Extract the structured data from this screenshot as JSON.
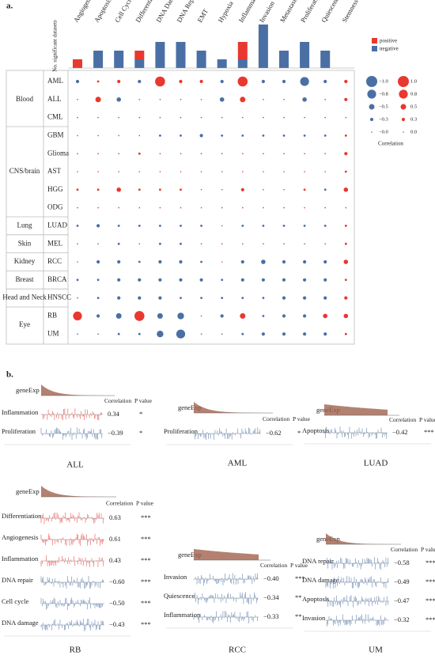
{
  "panel_a": {
    "label": "a.",
    "states": [
      "Angiogenesis",
      "Apoptosis",
      "Cell Cycle",
      "Differentiation",
      "DNA Damage",
      "DNA Repair",
      "EMT",
      "Hypoxia",
      "Inflammation",
      "Invasion",
      "Metastasis",
      "Proliferation",
      "Quiescence",
      "Stemness"
    ],
    "bar_chart": {
      "type": "bar",
      "y_label": "No. significant datasets",
      "ylim": [
        0,
        5
      ],
      "series": [
        {
          "name": "negative",
          "color": "#4a6fa5",
          "values": [
            0,
            2,
            2,
            1,
            3,
            3,
            2,
            1,
            1,
            5,
            2,
            3,
            2,
            0
          ]
        },
        {
          "name": "positive",
          "color": "#e8382f",
          "values": [
            1,
            0,
            0,
            1,
            0,
            0,
            0,
            0,
            2,
            0,
            0,
            0,
            0,
            0
          ]
        }
      ]
    },
    "matrix": {
      "type": "bubble",
      "groups": [
        {
          "name": "Blood",
          "rows": [
            0,
            1,
            2
          ]
        },
        {
          "name": "CNS/brain",
          "rows": [
            3,
            4,
            5,
            6,
            7
          ]
        },
        {
          "name": "Lung",
          "rows": [
            8
          ]
        },
        {
          "name": "Skin",
          "rows": [
            9
          ]
        },
        {
          "name": "Kidney",
          "rows": [
            10
          ]
        },
        {
          "name": "Breast",
          "rows": [
            11
          ]
        },
        {
          "name": "Head and Neck",
          "rows": [
            12
          ]
        },
        {
          "name": "Eye",
          "rows": [
            13,
            14
          ]
        }
      ],
      "rows": [
        "AML",
        "ALL",
        "CML",
        "GBM",
        "Glioma",
        "AST",
        "HGG",
        "ODG",
        "LUAD",
        "MEL",
        "RCC",
        "BRCA",
        "HNSCC",
        "RB",
        "UM"
      ],
      "row_colors": [
        "#4a6fa5",
        "#e8382f",
        "#4a6fa5",
        "#4a6fa5",
        "#4a6fa5",
        "#4a6fa5",
        "#4a6fa5",
        "#4a6fa5",
        "#4a6fa5",
        "#4a6fa5",
        "#4a6fa5",
        "#4a6fa5",
        "#4a6fa5",
        "#4a6fa5",
        "#4a6fa5"
      ],
      "positive_color": "#e8382f",
      "negative_color": "#4a6fa5",
      "values": [
        [
          -0.3,
          0.2,
          0.3,
          -0.3,
          0.9,
          0.3,
          0.3,
          -0.3,
          0.9,
          -0.3,
          -0.3,
          -0.8,
          -0.3,
          0.3
        ],
        [
          0.05,
          0.5,
          -0.4,
          -0.1,
          0.1,
          -0.1,
          0.1,
          -0.4,
          0.5,
          0.1,
          0.05,
          -0.4,
          0.05,
          0.3
        ],
        [
          0.1,
          0.05,
          0.05,
          0.05,
          0.1,
          0.05,
          0.05,
          0.05,
          0.05,
          0.05,
          0.05,
          0.05,
          0.05,
          0.1
        ],
        [
          0.1,
          -0.1,
          0.1,
          -0.1,
          -0.2,
          -0.2,
          -0.3,
          -0.2,
          -0.2,
          -0.2,
          -0.2,
          -0.2,
          -0.2,
          0.2
        ],
        [
          0.05,
          0.05,
          0.05,
          0.2,
          0.05,
          0.05,
          -0.1,
          0.05,
          0.1,
          0.05,
          0.05,
          0.05,
          0.05,
          0.3
        ],
        [
          0.05,
          0.05,
          0.05,
          0.05,
          0.05,
          0.05,
          0.05,
          0.05,
          0.05,
          0.05,
          0.05,
          0.05,
          0.05,
          0.2
        ],
        [
          0.2,
          0.2,
          0.4,
          0.2,
          0.2,
          0.2,
          0.1,
          -0.1,
          0.3,
          0.1,
          0.1,
          0.2,
          -0.2,
          0.4
        ],
        [
          0.05,
          0.05,
          0.05,
          0.1,
          0.05,
          0.05,
          0.05,
          0.05,
          0.05,
          0.05,
          0.05,
          0.05,
          0.05,
          0.1
        ],
        [
          -0.2,
          -0.3,
          -0.2,
          -0.2,
          -0.2,
          -0.2,
          -0.2,
          -0.1,
          -0.2,
          -0.2,
          -0.2,
          -0.2,
          -0.2,
          0.2
        ],
        [
          0.1,
          -0.1,
          -0.2,
          0.1,
          -0.2,
          -0.2,
          -0.1,
          0.05,
          -0.1,
          -0.1,
          -0.1,
          -0.1,
          -0.1,
          0.2
        ],
        [
          -0.1,
          -0.3,
          -0.3,
          -0.2,
          -0.3,
          -0.3,
          -0.2,
          0.1,
          -0.3,
          -0.4,
          -0.3,
          -0.3,
          -0.3,
          0.4
        ],
        [
          -0.2,
          -0.2,
          -0.3,
          -0.3,
          -0.3,
          -0.3,
          -0.3,
          -0.2,
          -0.3,
          -0.3,
          -0.3,
          -0.3,
          -0.3,
          0.2
        ],
        [
          -0.1,
          -0.2,
          -0.3,
          -0.3,
          -0.3,
          -0.2,
          -0.2,
          -0.2,
          -0.2,
          -0.2,
          -0.3,
          -0.3,
          -0.3,
          0.3
        ],
        [
          0.8,
          -0.3,
          -0.5,
          0.9,
          -0.5,
          -0.6,
          0.05,
          -0.3,
          0.5,
          -0.2,
          -0.3,
          -0.3,
          0.4,
          0.4
        ],
        [
          -0.1,
          -0.1,
          -0.2,
          -0.2,
          -0.6,
          -0.8,
          -0.1,
          -0.1,
          -0.2,
          -0.3,
          -0.3,
          -0.3,
          -0.3,
          0.2
        ]
      ],
      "size_legend": {
        "title": "Correlation",
        "negative": [
          {
            "value": -1.0,
            "label": "−1.0"
          },
          {
            "value": -0.8,
            "label": "−0.8"
          },
          {
            "value": -0.5,
            "label": "−0.5"
          },
          {
            "value": -0.3,
            "label": "−0.3"
          },
          {
            "value": -0.0,
            "label": "−0.0"
          }
        ],
        "positive": [
          {
            "value": 1.0,
            "label": "1.0"
          },
          {
            "value": 0.8,
            "label": "0.8"
          },
          {
            "value": 0.5,
            "label": "0.5"
          },
          {
            "value": 0.3,
            "label": "0.3"
          },
          {
            "value": 0.0,
            "label": "0.0"
          }
        ]
      }
    }
  },
  "panel_b": {
    "label": "b.",
    "expression_label": "geneExp",
    "correlation_header": "Correlation",
    "p_header": "P value",
    "panels": [
      {
        "title": "ALL",
        "states": [
          "Inflammation",
          "Proliferation"
        ],
        "values": [
          0.34,
          -0.39
        ],
        "value_labels": [
          "0.34",
          "−0.39"
        ],
        "p_values": [
          "*",
          "*"
        ],
        "label_colors": [
          "#e8382f",
          "#222"
        ]
      },
      {
        "title": "AML",
        "states": [
          "Proliferation"
        ],
        "values": [
          -0.62
        ],
        "value_labels": [
          "−0.62"
        ],
        "p_values": [
          "*"
        ],
        "label_colors": [
          "#4a6fa5"
        ]
      },
      {
        "title": "LUAD",
        "states": [
          "Apoptosis"
        ],
        "values": [
          -0.42
        ],
        "value_labels": [
          "−0.42"
        ],
        "p_values": [
          "***"
        ],
        "label_colors": [
          "#4a6fa5"
        ]
      },
      {
        "title": "RB",
        "states": [
          "Differentiation",
          "Angiogenesis",
          "Inflammation",
          "DNA repair",
          "Cell cycle",
          "DNA damage"
        ],
        "values": [
          0.63,
          0.61,
          0.43,
          -0.6,
          -0.5,
          -0.43
        ],
        "value_labels": [
          "0.63",
          "0.61",
          "0.43",
          "−0.60",
          "−0.50",
          "−0.43"
        ],
        "p_values": [
          "***",
          "***",
          "***",
          "***",
          "***",
          "***"
        ],
        "label_colors": [
          "#e8382f",
          "#222",
          "#222",
          "#222",
          "#222",
          "#222"
        ]
      },
      {
        "title": "RCC",
        "states": [
          "Invasion",
          "Quiescence",
          "Inflammation"
        ],
        "values": [
          -0.4,
          -0.34,
          -0.33
        ],
        "value_labels": [
          "−0.40",
          "−0.34",
          "−0.33"
        ],
        "p_values": [
          "***",
          "**",
          "**"
        ],
        "label_colors": [
          "#4a6fa5",
          "#222",
          "#222"
        ]
      },
      {
        "title": "UM",
        "states": [
          "DNA repair",
          "DNA damage",
          "Apoptosis",
          "Invasion"
        ],
        "values": [
          -0.58,
          -0.49,
          -0.47,
          -0.32
        ],
        "value_labels": [
          "−0.58",
          "−0.49",
          "−0.47",
          "−0.32"
        ],
        "p_values": [
          "***",
          "***",
          "***",
          "***"
        ],
        "label_colors": [
          "#4a6fa5",
          "#222",
          "#222",
          "#222"
        ]
      }
    ]
  }
}
